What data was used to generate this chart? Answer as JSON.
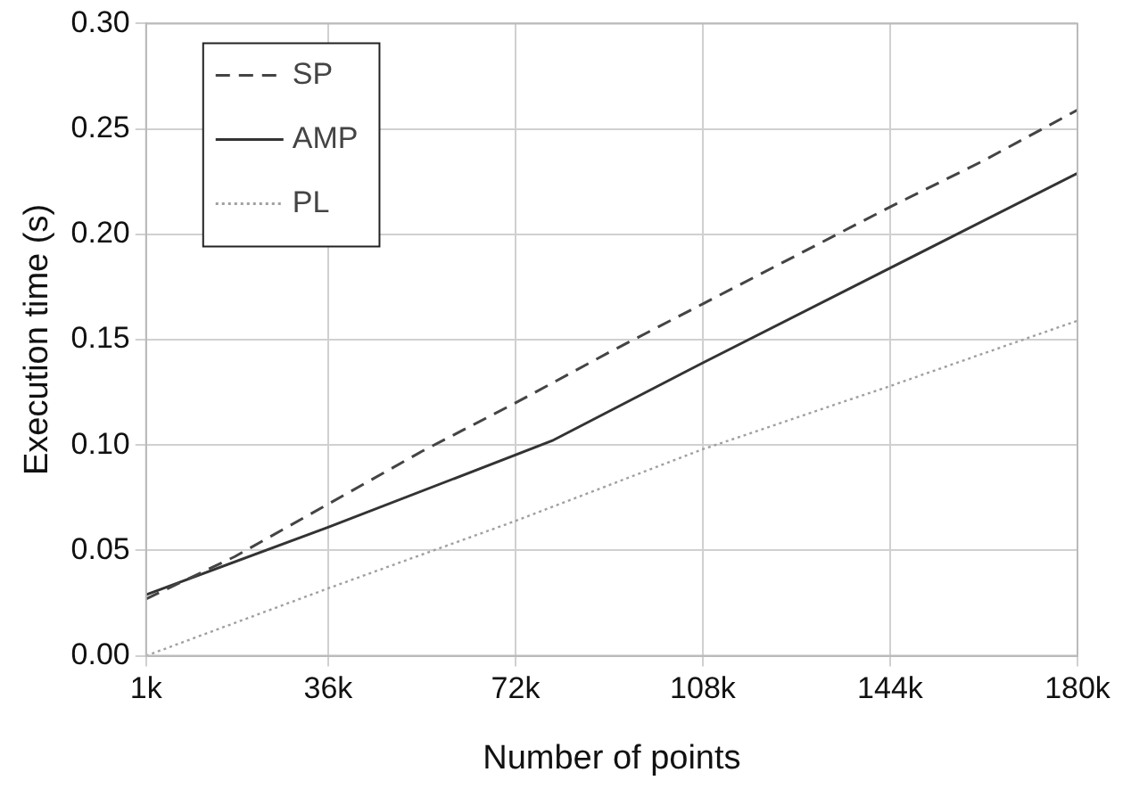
{
  "chart_data": {
    "type": "line",
    "xlabel": "Number of points",
    "ylabel": "Execution time (s)",
    "xlim": [
      1,
      180
    ],
    "xticks": [
      {
        "value": 1,
        "label": "1k"
      },
      {
        "value": 36,
        "label": "36k"
      },
      {
        "value": 72,
        "label": "72k"
      },
      {
        "value": 108,
        "label": "108k"
      },
      {
        "value": 144,
        "label": "144k"
      },
      {
        "value": 180,
        "label": "180k"
      }
    ],
    "ylim": [
      0,
      0.3
    ],
    "yticks": [
      {
        "value": 0,
        "label": "0.00"
      },
      {
        "value": 0.05,
        "label": "0.05"
      },
      {
        "value": 0.1,
        "label": "0.10"
      },
      {
        "value": 0.15,
        "label": "0.15"
      },
      {
        "value": 0.2,
        "label": "0.20"
      },
      {
        "value": 0.25,
        "label": "0.25"
      },
      {
        "value": 0.3,
        "label": "0.30"
      }
    ],
    "grid": true,
    "legend": "top left",
    "marker": "none",
    "series": [
      {
        "name": "SP",
        "color": "#444444",
        "line_style": "dashed",
        "x": [
          1,
          18,
          36,
          54,
          72,
          90,
          108,
          126,
          144,
          162,
          180
        ],
        "values": [
          0.027,
          0.047,
          0.072,
          0.097,
          0.12,
          0.144,
          0.167,
          0.19,
          0.213,
          0.235,
          0.259
        ]
      },
      {
        "name": "AMP",
        "color": "#333333",
        "line_style": "solid",
        "x": [
          1,
          36,
          79,
          108,
          144,
          180
        ],
        "values": [
          0.029,
          0.061,
          0.102,
          0.139,
          0.184,
          0.229
        ]
      },
      {
        "name": "PL",
        "color": "#a0a0a0",
        "line_style": "dotted",
        "x": [
          1,
          36,
          72,
          108,
          144,
          180
        ],
        "values": [
          0,
          0.032,
          0.064,
          0.098,
          0.128,
          0.159
        ]
      }
    ]
  }
}
